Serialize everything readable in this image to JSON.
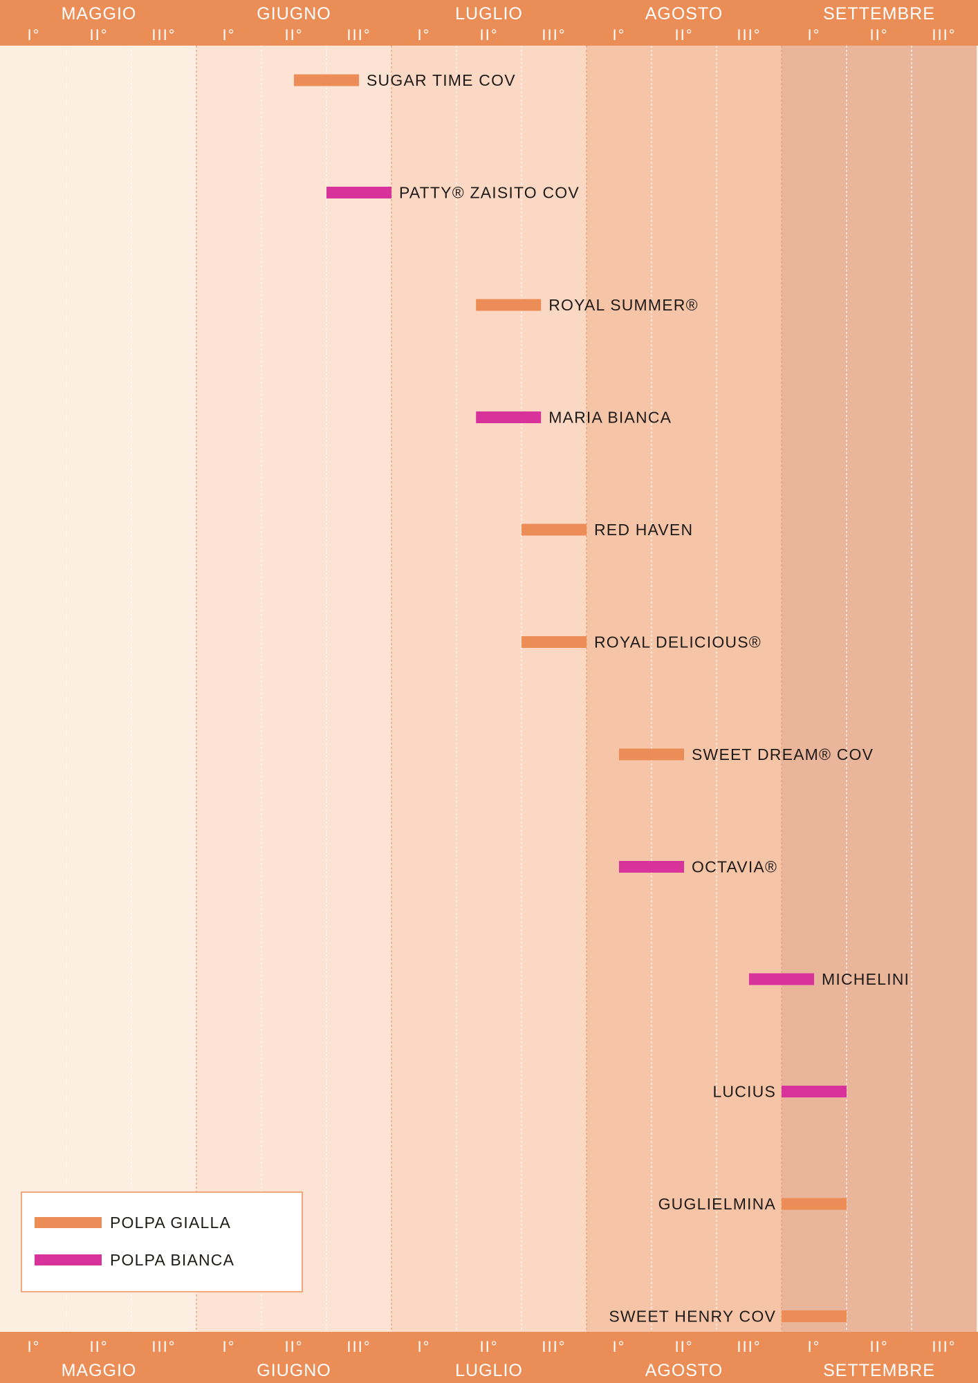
{
  "chart_data": {
    "type": "timeline",
    "title": "",
    "months": [
      "MAGGIO",
      "GIUGNO",
      "LUGLIO",
      "AGOSTO",
      "SETTEMBRE"
    ],
    "decades": [
      "I°",
      "II°",
      "III°"
    ],
    "month_shades": [
      "#fdeee2",
      "#fce3d4",
      "#fbd8c3",
      "#f6c5a8",
      "#e9b69b"
    ],
    "x_unit": "decade index (0 = I° Maggio … 15 = end of III° Settembre)",
    "xlim": [
      0,
      15
    ],
    "series": [
      {
        "name": "POLPA GIALLA",
        "color": "#ec8d58"
      },
      {
        "name": "POLPA BIANCA",
        "color": "#d8339a"
      }
    ],
    "varieties": [
      {
        "name": "SUGAR TIME COV",
        "series": 0,
        "start": 4.5,
        "end": 5.5,
        "label_side": "right"
      },
      {
        "name": "PATTY® ZAISITO COV",
        "series": 1,
        "start": 5.0,
        "end": 6.0,
        "label_side": "right"
      },
      {
        "name": "ROYAL SUMMER®",
        "series": 0,
        "start": 7.3,
        "end": 8.3,
        "label_side": "right"
      },
      {
        "name": "MARIA BIANCA",
        "series": 1,
        "start": 7.3,
        "end": 8.3,
        "label_side": "right"
      },
      {
        "name": "RED HAVEN",
        "series": 0,
        "start": 8.0,
        "end": 9.0,
        "label_side": "right"
      },
      {
        "name": "ROYAL DELICIOUS®",
        "series": 0,
        "start": 8.0,
        "end": 9.0,
        "label_side": "right"
      },
      {
        "name": "SWEET DREAM® COV",
        "series": 0,
        "start": 9.5,
        "end": 10.5,
        "label_side": "right"
      },
      {
        "name": "OCTAVIA®",
        "series": 1,
        "start": 9.5,
        "end": 10.5,
        "label_side": "right"
      },
      {
        "name": "MICHELINI",
        "series": 1,
        "start": 11.5,
        "end": 12.5,
        "label_side": "right"
      },
      {
        "name": "LUCIUS",
        "series": 1,
        "start": 12.0,
        "end": 13.0,
        "label_side": "left"
      },
      {
        "name": "GUGLIELMINA",
        "series": 0,
        "start": 12.0,
        "end": 13.0,
        "label_side": "left"
      },
      {
        "name": "SWEET HENRY COV",
        "series": 0,
        "start": 12.0,
        "end": 13.0,
        "label_side": "left"
      }
    ],
    "legend": {
      "placement": "bottom-left",
      "items": [
        "POLPA GIALLA",
        "POLPA BIANCA"
      ]
    }
  },
  "colors": {
    "band": "#ea8d56",
    "text": "#1e1a18",
    "gold": "#ec8d58",
    "white_flesh": "#d8339a"
  }
}
